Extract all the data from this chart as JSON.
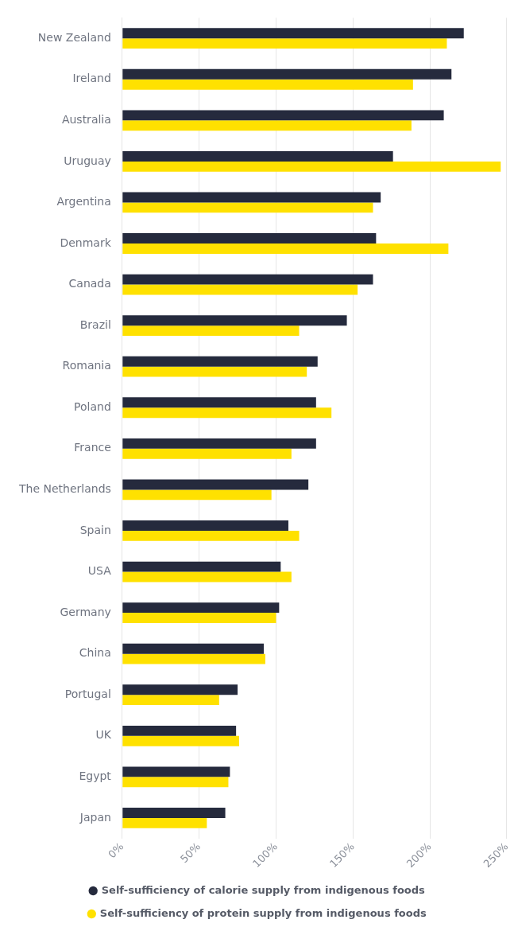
{
  "chart_data": {
    "type": "bar",
    "orientation": "horizontal",
    "categories": [
      "New Zealand",
      "Ireland",
      "Australia",
      "Uruguay",
      "Argentina",
      "Denmark",
      "Canada",
      "Brazil",
      "Romania",
      "Poland",
      "France",
      "The Netherlands",
      "Spain",
      "USA",
      "Germany",
      "China",
      "Portugal",
      "UK",
      "Egypt",
      "Japan"
    ],
    "series": [
      {
        "name": "Self-sufficiency of calorie supply from indigenous foods",
        "color": "#252a3d",
        "values": [
          222,
          214,
          209,
          176,
          168,
          165,
          163,
          146,
          127,
          126,
          126,
          121,
          108,
          103,
          102,
          92,
          75,
          74,
          70,
          67
        ]
      },
      {
        "name": "Self-sufficiency of protein supply from indigenous foods",
        "color": "#ffe100",
        "values": [
          211,
          189,
          188,
          246,
          163,
          212,
          153,
          115,
          120,
          136,
          110,
          97,
          115,
          110,
          100,
          93,
          63,
          76,
          69,
          55
        ]
      }
    ],
    "xlim": [
      0,
      250
    ],
    "xticks": [
      {
        "value": 0,
        "label": "0%"
      },
      {
        "value": 50,
        "label": "50%"
      },
      {
        "value": 100,
        "label": "100%"
      },
      {
        "value": 150,
        "label": "150%"
      },
      {
        "value": 200,
        "label": "200%"
      },
      {
        "value": 250,
        "label": "250%"
      }
    ],
    "grid": "x",
    "legend": "bottom"
  }
}
